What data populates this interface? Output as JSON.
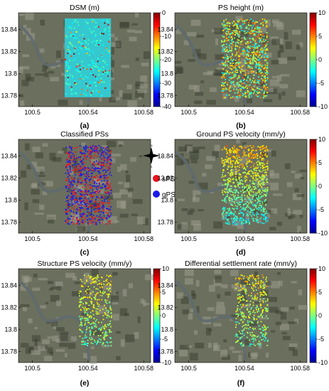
{
  "chart_data": [
    {
      "type": "heatmap",
      "title": "DSM (m)",
      "caption": "(a)",
      "x_ticks": [
        "100.5",
        "100.54",
        "100.58"
      ],
      "y_ticks": [
        "13.84",
        "13.82",
        "13.8",
        "13.78"
      ],
      "xlim": [
        100.49,
        100.585
      ],
      "ylim": [
        13.77,
        13.855
      ],
      "colorbar": {
        "ticks": [
          "0",
          "-10",
          "-20",
          "-30",
          "-40"
        ],
        "range": [
          -40,
          0
        ],
        "colormap": "jet"
      }
    },
    {
      "type": "scatter",
      "title": "PS height (m)",
      "caption": "(b)",
      "x_ticks": [
        "100.5",
        "100.54",
        "100.58"
      ],
      "y_ticks": [
        "13.84",
        "13.82",
        "13.8",
        "13.78"
      ],
      "xlim": [
        100.49,
        100.585
      ],
      "ylim": [
        13.77,
        13.855
      ],
      "colorbar": {
        "ticks": [
          "10",
          "5",
          "0",
          "-5",
          "-10"
        ],
        "range": [
          -10,
          10
        ],
        "colormap": "jet"
      }
    },
    {
      "type": "scatter",
      "title": "Classified PSs",
      "caption": "(c)",
      "x_ticks": [
        "100.5",
        "100.54",
        "100.58"
      ],
      "y_ticks": [
        "13.84",
        "13.82",
        "13.8",
        "13.78"
      ],
      "xlim": [
        100.49,
        100.585
      ],
      "ylim": [
        13.77,
        13.855
      ],
      "legend": [
        {
          "label": "sPSs",
          "color": "#e8141c"
        },
        {
          "label": "gPSs",
          "color": "#1a1ae6"
        }
      ],
      "compass": [
        "N",
        "S",
        "E",
        "W"
      ]
    },
    {
      "type": "scatter",
      "title": "Ground PS velocity (mm/y)",
      "caption": "(d)",
      "x_ticks": [
        "100.5",
        "100.54",
        "100.58"
      ],
      "y_ticks": [
        "13.84",
        "13.82",
        "13.8",
        "13.78"
      ],
      "xlim": [
        100.49,
        100.585
      ],
      "ylim": [
        13.77,
        13.855
      ],
      "colorbar": {
        "ticks": [
          "10",
          "5",
          "0",
          "-5",
          "-10"
        ],
        "range": [
          -10,
          10
        ],
        "colormap": "jet"
      }
    },
    {
      "type": "scatter",
      "title": "Structure PS velocity (mm/y)",
      "caption": "(e)",
      "x_ticks": [
        "100.5",
        "100.54",
        "100.58"
      ],
      "y_ticks": [
        "13.84",
        "13.82",
        "13.8",
        "13.78"
      ],
      "xlim": [
        100.49,
        100.585
      ],
      "ylim": [
        13.77,
        13.855
      ],
      "colorbar": {
        "ticks": [
          "10",
          "5",
          "0",
          "-5",
          "-10"
        ],
        "range": [
          -10,
          10
        ],
        "colormap": "jet"
      }
    },
    {
      "type": "scatter",
      "title": "Differential settlement rate (mm/y)",
      "caption": "(f)",
      "x_ticks": [
        "100.5",
        "100.54",
        "100.58"
      ],
      "y_ticks": [
        "13.84",
        "13.82",
        "13.8",
        "13.78"
      ],
      "xlim": [
        100.49,
        100.585
      ],
      "ylim": [
        13.77,
        13.855
      ],
      "colorbar": {
        "ticks": [
          "10",
          "5",
          "0",
          "-5",
          "-10"
        ],
        "range": [
          -10,
          10
        ],
        "colormap": "jet"
      }
    }
  ],
  "colors": {
    "basemap_dark": "#3d4233",
    "basemap_mid": "#6b6f5e",
    "basemap_light": "#9a9a8c",
    "river": "#5f6a6e",
    "dsm_fill": "#35c8cf",
    "spss": "#e8141c",
    "gpss": "#1a1ae6"
  }
}
